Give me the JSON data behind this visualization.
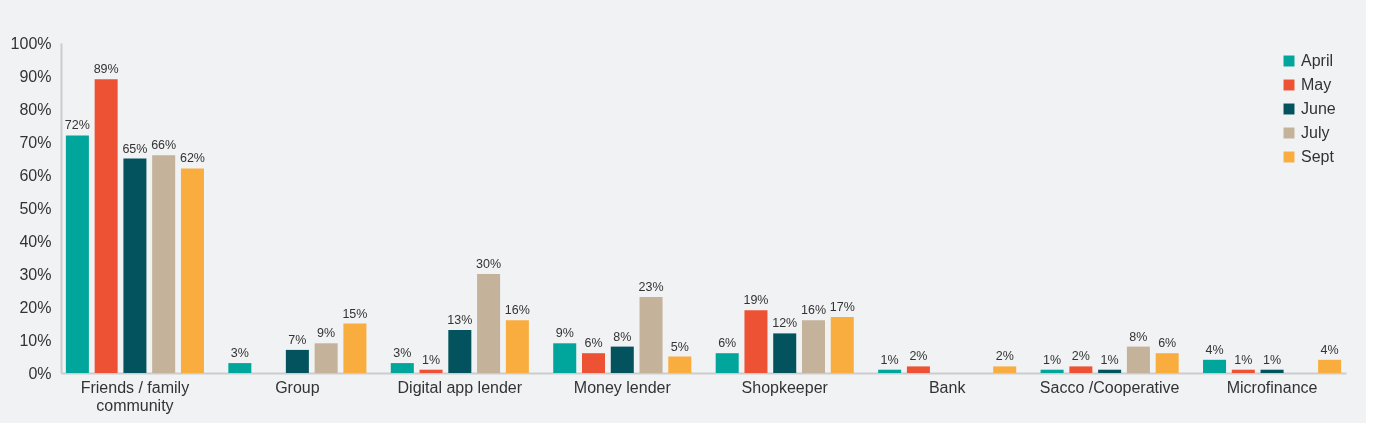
{
  "chart_data": {
    "type": "bar",
    "categories": [
      "Friends / family community",
      "Group",
      "Digital app lender",
      "Money lender",
      "Shopkeeper",
      "Bank",
      "Sacco /Cooperative",
      "Microfinance"
    ],
    "series": [
      {
        "name": "April",
        "color": "#00a59b",
        "values": [
          72,
          3,
          3,
          9,
          6,
          1,
          1,
          4
        ],
        "value_labels": [
          "72%",
          "3%",
          "3%",
          "9%",
          "6%",
          "1%",
          "1%",
          "4%"
        ]
      },
      {
        "name": "May",
        "color": "#ee5235",
        "values": [
          89,
          null,
          1,
          6,
          19,
          2,
          2,
          1
        ],
        "value_labels": [
          "89%",
          null,
          "1%",
          "6%",
          "19%",
          "2%",
          "2%",
          "1%"
        ]
      },
      {
        "name": "June",
        "color": "#02535e",
        "values": [
          65,
          7,
          13,
          8,
          12,
          null,
          1,
          1
        ],
        "value_labels": [
          "65%",
          "7%",
          "13%",
          "8%",
          "12%",
          null,
          "1%",
          "1%"
        ]
      },
      {
        "name": "July",
        "color": "#c4b29a",
        "values": [
          66,
          9,
          30,
          23,
          16,
          null,
          8,
          null
        ],
        "value_labels": [
          "66%",
          "9%",
          "30%",
          "23%",
          "16%",
          null,
          "8%",
          null
        ]
      },
      {
        "name": "Sept",
        "color": "#f9ad3e",
        "values": [
          62,
          15,
          16,
          5,
          17,
          2,
          6,
          4
        ],
        "value_labels": [
          "62%",
          "15%",
          "16%",
          "5%",
          "17%",
          "2%",
          "6%",
          "4%"
        ]
      }
    ],
    "ylim": [
      0,
      100
    ],
    "yticks": [
      {
        "value": 0,
        "label": "0%"
      },
      {
        "value": 10,
        "label": "10%"
      },
      {
        "value": 20,
        "label": "20%"
      },
      {
        "value": 30,
        "label": "30%"
      },
      {
        "value": 40,
        "label": "40%"
      },
      {
        "value": 50,
        "label": "50%"
      },
      {
        "value": 60,
        "label": "60%"
      },
      {
        "value": 70,
        "label": "70%"
      },
      {
        "value": 80,
        "label": "80%"
      },
      {
        "value": 90,
        "label": "90%"
      },
      {
        "value": 100,
        "label": "100%"
      }
    ],
    "grid": false,
    "legend": "top right"
  }
}
